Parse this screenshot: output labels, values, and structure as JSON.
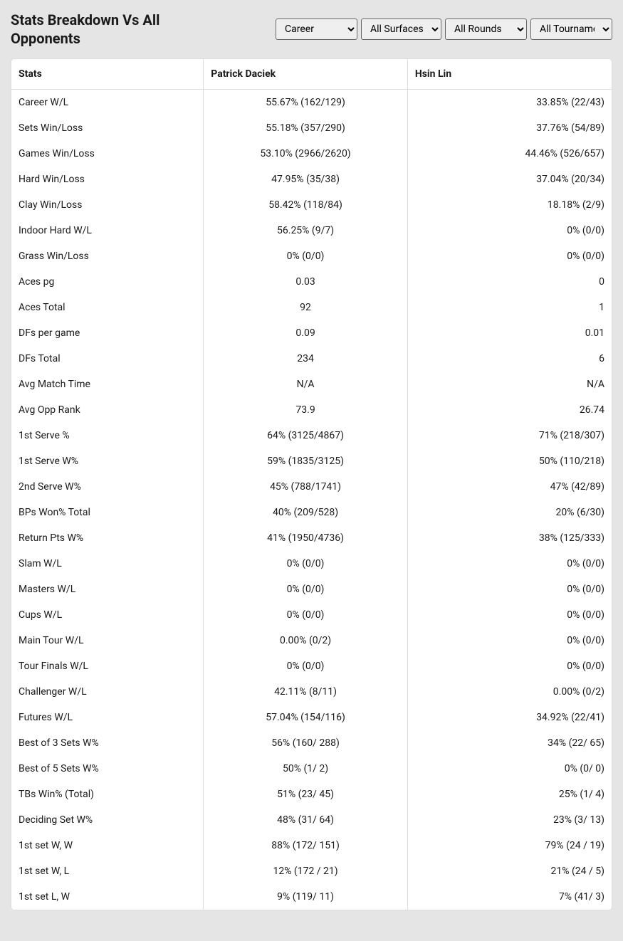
{
  "header": {
    "title": "Stats Breakdown Vs All Opponents",
    "filters": {
      "timeframe_label": "Career",
      "surface_label": "All Surfaces",
      "round_label": "All Rounds",
      "tournament_label": "All Tournaments"
    }
  },
  "table": {
    "columns": {
      "stats": "Stats",
      "player1": "Patrick Daciek",
      "player2": "Hsin Lin"
    },
    "rows": [
      {
        "stat": "Career W/L",
        "p1": "55.67% (162/129)",
        "p2": "33.85% (22/43)"
      },
      {
        "stat": "Sets Win/Loss",
        "p1": "55.18% (357/290)",
        "p2": "37.76% (54/89)"
      },
      {
        "stat": "Games Win/Loss",
        "p1": "53.10% (2966/2620)",
        "p2": "44.46% (526/657)"
      },
      {
        "stat": "Hard Win/Loss",
        "p1": "47.95% (35/38)",
        "p2": "37.04% (20/34)"
      },
      {
        "stat": "Clay Win/Loss",
        "p1": "58.42% (118/84)",
        "p2": "18.18% (2/9)"
      },
      {
        "stat": "Indoor Hard W/L",
        "p1": "56.25% (9/7)",
        "p2": "0% (0/0)"
      },
      {
        "stat": "Grass Win/Loss",
        "p1": "0% (0/0)",
        "p2": "0% (0/0)"
      },
      {
        "stat": "Aces pg",
        "p1": "0.03",
        "p2": "0"
      },
      {
        "stat": "Aces Total",
        "p1": "92",
        "p2": "1"
      },
      {
        "stat": "DFs per game",
        "p1": "0.09",
        "p2": "0.01"
      },
      {
        "stat": "DFs Total",
        "p1": "234",
        "p2": "6"
      },
      {
        "stat": "Avg Match Time",
        "p1": "N/A",
        "p2": "N/A"
      },
      {
        "stat": "Avg Opp Rank",
        "p1": "73.9",
        "p2": "26.74"
      },
      {
        "stat": "1st Serve %",
        "p1": "64% (3125/4867)",
        "p2": "71% (218/307)"
      },
      {
        "stat": "1st Serve W%",
        "p1": "59% (1835/3125)",
        "p2": "50% (110/218)"
      },
      {
        "stat": "2nd Serve W%",
        "p1": "45% (788/1741)",
        "p2": "47% (42/89)"
      },
      {
        "stat": "BPs Won% Total",
        "p1": "40% (209/528)",
        "p2": "20% (6/30)"
      },
      {
        "stat": "Return Pts W%",
        "p1": "41% (1950/4736)",
        "p2": "38% (125/333)"
      },
      {
        "stat": "Slam W/L",
        "p1": "0% (0/0)",
        "p2": "0% (0/0)"
      },
      {
        "stat": "Masters W/L",
        "p1": "0% (0/0)",
        "p2": "0% (0/0)"
      },
      {
        "stat": "Cups W/L",
        "p1": "0% (0/0)",
        "p2": "0% (0/0)"
      },
      {
        "stat": "Main Tour W/L",
        "p1": "0.00% (0/2)",
        "p2": "0% (0/0)"
      },
      {
        "stat": "Tour Finals W/L",
        "p1": "0% (0/0)",
        "p2": "0% (0/0)"
      },
      {
        "stat": "Challenger W/L",
        "p1": "42.11% (8/11)",
        "p2": "0.00% (0/2)"
      },
      {
        "stat": "Futures W/L",
        "p1": "57.04% (154/116)",
        "p2": "34.92% (22/41)"
      },
      {
        "stat": "Best of 3 Sets W%",
        "p1": "56% (160/ 288)",
        "p2": "34% (22/ 65)"
      },
      {
        "stat": "Best of 5 Sets W%",
        "p1": "50% (1/ 2)",
        "p2": "0% (0/ 0)"
      },
      {
        "stat": "TBs Win% (Total)",
        "p1": "51% (23/ 45)",
        "p2": "25% (1/ 4)"
      },
      {
        "stat": "Deciding Set W%",
        "p1": "48% (31/ 64)",
        "p2": "23% (3/ 13)"
      },
      {
        "stat": "1st set W, W",
        "p1": "88% (172/ 151)",
        "p2": "79% (24 / 19)"
      },
      {
        "stat": "1st set W, L",
        "p1": "12% (172 / 21)",
        "p2": "21% (24 / 5)"
      },
      {
        "stat": "1st set L, W",
        "p1": "9% (119/ 11)",
        "p2": "7% (41/ 3)"
      }
    ]
  }
}
